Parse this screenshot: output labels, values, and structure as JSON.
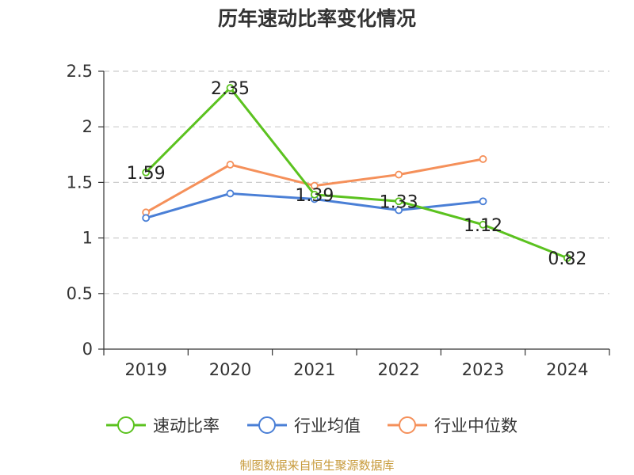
{
  "chart_data": {
    "type": "line",
    "title": "历年速动比率变化情况",
    "categories": [
      "2019",
      "2020",
      "2021",
      "2022",
      "2023",
      "2024"
    ],
    "ylim": [
      0,
      2.5
    ],
    "yticks": [
      "0",
      "0.5",
      "1",
      "1.5",
      "2",
      "2.5"
    ],
    "grid": true,
    "legend_position": "bottom",
    "series": [
      {
        "name": "速动比率",
        "color": "#5bc21f",
        "values": [
          1.59,
          2.35,
          1.39,
          1.33,
          1.12,
          0.82
        ],
        "labels": [
          "1.59",
          "2.35",
          "1.39",
          "1.33",
          "1.12",
          "0.82"
        ]
      },
      {
        "name": "行业均值",
        "color": "#4a7fd6",
        "values": [
          1.18,
          1.4,
          1.35,
          1.25,
          1.33,
          null
        ]
      },
      {
        "name": "行业中位数",
        "color": "#f5905a",
        "values": [
          1.23,
          1.66,
          1.47,
          1.57,
          1.71,
          null
        ]
      }
    ]
  },
  "source": "制图数据来自恒生聚源数据库"
}
